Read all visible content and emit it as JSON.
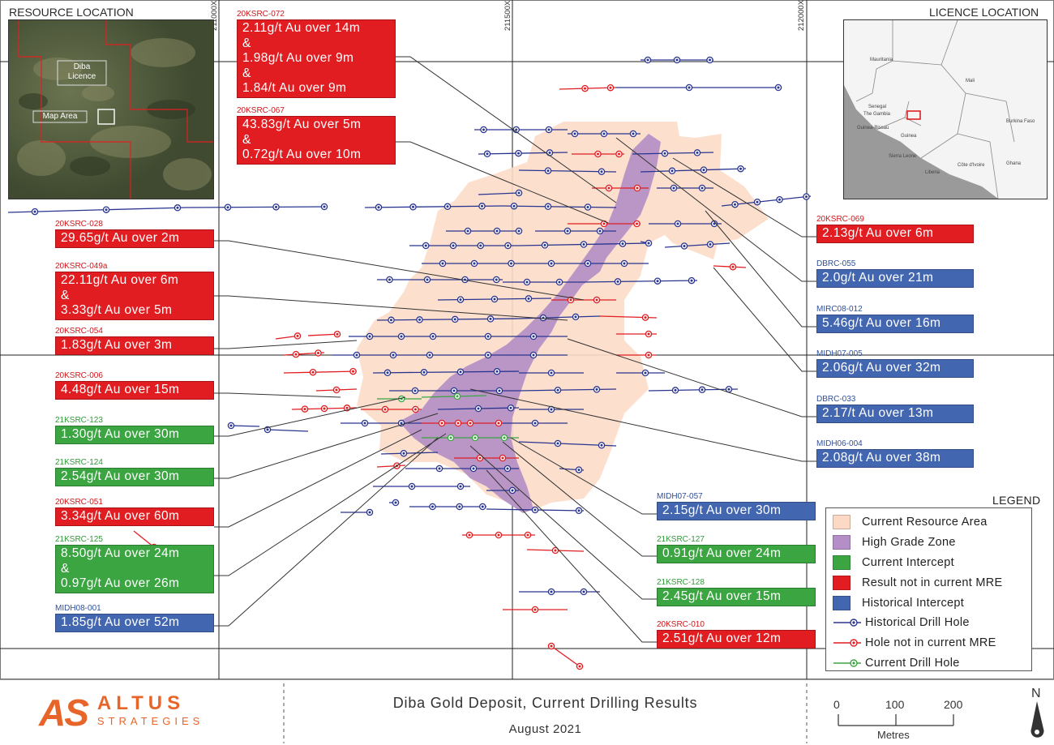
{
  "panels": {
    "resource_location": "RESOURCE LOCATION",
    "licence_location": "LICENCE LOCATION",
    "legend": "LEGEND"
  },
  "inset_resource": {
    "licence_label": "Diba\nLicence",
    "map_area_label": "Map Area"
  },
  "inset_licence": {
    "country_labels": [
      "Mauritania",
      "Mali",
      "Senegal",
      "The Gambia",
      "Guinea-Bissau",
      "Guinea",
      "Burkina Faso",
      "Sierra Leone",
      "Liberia",
      "Côte d'Ivoire",
      "Ghana"
    ]
  },
  "grid_labels": {
    "x1": "211000X",
    "x2": "211500X",
    "x3": "212000X"
  },
  "callouts": [
    {
      "id": "20KSRC-072",
      "color": "red",
      "lines": [
        "2.11g/t Au over 14m",
        "&",
        "1.98g/t Au over 9m",
        "&",
        "1.84/t Au over 9m"
      ]
    },
    {
      "id": "20KSRC-067",
      "color": "red",
      "lines": [
        "43.83g/t Au over 5m",
        "&",
        "0.72g/t Au over 10m"
      ]
    },
    {
      "id": "20KSRC-028",
      "color": "red",
      "lines": [
        "29.65g/t Au over 2m"
      ]
    },
    {
      "id": "20KSRC-049a",
      "color": "red",
      "lines": [
        "22.11g/t Au over 6m",
        "&",
        "3.33g/t Au over 5m"
      ]
    },
    {
      "id": "20KSRC-054",
      "color": "red",
      "lines": [
        "1.83g/t Au over 3m"
      ]
    },
    {
      "id": "20KSRC-006",
      "color": "red",
      "lines": [
        "4.48g/t Au over 15m"
      ]
    },
    {
      "id": "21KSRC-123",
      "color": "green",
      "lines": [
        "1.30g/t Au over 30m"
      ]
    },
    {
      "id": "21KSRC-124",
      "color": "green",
      "lines": [
        "2.54g/t Au over 30m"
      ]
    },
    {
      "id": "20KSRC-051",
      "color": "red",
      "lines": [
        "3.34g/t Au over 60m"
      ]
    },
    {
      "id": "21KSRC-125",
      "color": "green",
      "lines": [
        "8.50g/t Au over 24m",
        "&",
        "0.97g/t Au over 26m"
      ]
    },
    {
      "id": "MIDH08-001",
      "color": "blue",
      "lines": [
        "1.85g/t Au over 52m"
      ]
    },
    {
      "id": "20KSRC-069",
      "color": "red",
      "lines": [
        "2.13g/t Au over 6m"
      ]
    },
    {
      "id": "DBRC-055",
      "color": "blue",
      "lines": [
        "2.0g/t Au over 21m"
      ]
    },
    {
      "id": "MIRC08-012",
      "color": "blue",
      "lines": [
        "5.46g/t Au over 16m"
      ]
    },
    {
      "id": "MIDH07-005",
      "color": "blue",
      "lines": [
        "2.06g/t Au over 32m"
      ]
    },
    {
      "id": "DBRC-033",
      "color": "blue",
      "lines": [
        "2.17/t Au over 13m"
      ]
    },
    {
      "id": "MIDH06-004",
      "color": "blue",
      "lines": [
        "2.08g/t Au over 38m"
      ]
    },
    {
      "id": "MIDH07-057",
      "color": "blue",
      "lines": [
        "2.15g/t Au over 30m"
      ]
    },
    {
      "id": "21KSRC-127",
      "color": "green",
      "lines": [
        "0.91g/t Au over 24m"
      ]
    },
    {
      "id": "21KSRC-128",
      "color": "green",
      "lines": [
        "2.45g/t Au over 15m"
      ]
    },
    {
      "id": "20KSRC-010",
      "color": "red",
      "lines": [
        "2.51g/t Au over 12m"
      ]
    }
  ],
  "legend_items": [
    {
      "label": "Current Resource Area",
      "swatch": "#fbd9c5",
      "kind": "box"
    },
    {
      "label": "High Grade Zone",
      "swatch": "#b48fc7",
      "kind": "box"
    },
    {
      "label": "Current Intercept",
      "swatch": "#3aa541",
      "kind": "box"
    },
    {
      "label": "Result not in current MRE",
      "swatch": "#e11d21",
      "kind": "box"
    },
    {
      "label": "Historical Intercept",
      "swatch": "#4366b0",
      "kind": "box"
    },
    {
      "label": "Historical Drill Hole",
      "swatch": "#2a3590",
      "kind": "line"
    },
    {
      "label": "Hole not in current MRE",
      "swatch": "#e11d21",
      "kind": "line"
    },
    {
      "label": "Current Drill Hole",
      "swatch": "#3aa541",
      "kind": "line"
    }
  ],
  "footer": {
    "logo_letters": "AS",
    "logo_word1": "ALTUS",
    "logo_word2": "STRATEGIES",
    "title": "Diba Gold Deposit, Current Drilling Results",
    "date": "August 2021",
    "scale_ticks": [
      "0",
      "100",
      "200"
    ],
    "scale_unit": "Metres",
    "north": "N"
  },
  "colors": {
    "red": "#e11d21",
    "green": "#3aa541",
    "blue": "#4366b0",
    "resource": "#fbd9c5",
    "high_grade": "#b48fc7"
  }
}
